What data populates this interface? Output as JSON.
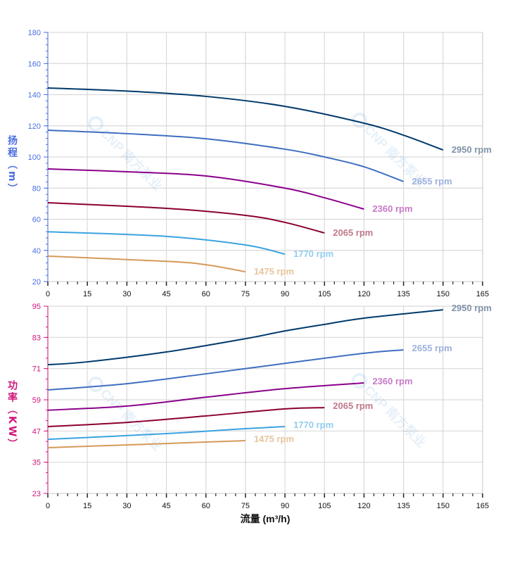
{
  "watermark": {
    "logo_text": "CNP 南方泵业"
  },
  "chart_data": [
    {
      "type": "line",
      "ylabel": "扬程（m）",
      "ylabel_chars": [
        "扬",
        "程",
        "(m)"
      ],
      "ylim": [
        20,
        180
      ],
      "yticks": [
        20,
        40,
        60,
        80,
        100,
        120,
        140,
        160,
        180
      ],
      "xlim": [
        0,
        165
      ],
      "xticks": [
        0,
        15,
        30,
        45,
        60,
        75,
        90,
        105,
        120,
        135,
        150,
        165
      ],
      "grid": true,
      "axis_color": "#4a6ee0",
      "series": [
        {
          "name": "2950 rpm",
          "color": "#003a6b",
          "label_color": "#7f93a8",
          "x": [
            0,
            30,
            60,
            90,
            120,
            135,
            150
          ],
          "y": [
            144.3,
            142.3,
            138.9,
            132.5,
            121.7,
            114,
            104.5
          ]
        },
        {
          "name": "2655 rpm",
          "color": "#3f6ec0",
          "label_color": "#9db0dd",
          "x": [
            0,
            30,
            60,
            90,
            105,
            120,
            135
          ],
          "y": [
            117.2,
            115,
            111.7,
            105,
            100,
            93.7,
            84.2
          ]
        },
        {
          "name": "2360 rpm",
          "color": "#8b008b",
          "label_color": "#c77ac7",
          "x": [
            0,
            30,
            60,
            90,
            105,
            120
          ],
          "y": [
            92.3,
            90.5,
            87.8,
            80,
            73.8,
            66.5
          ]
        },
        {
          "name": "2065 rpm",
          "color": "#8b0030",
          "label_color": "#c0788a",
          "x": [
            0,
            45,
            75,
            90,
            105
          ],
          "y": [
            70.6,
            67,
            62.5,
            58,
            51.2
          ]
        },
        {
          "name": "1770 rpm",
          "color": "#3aa3e0",
          "label_color": "#92cdef",
          "x": [
            0,
            45,
            75,
            90
          ],
          "y": [
            52,
            49,
            43.5,
            37.6
          ]
        },
        {
          "name": "1475 rpm",
          "color": "#d59a5a",
          "label_color": "#e8c49d",
          "x": [
            0,
            45,
            60,
            75
          ],
          "y": [
            36.3,
            33,
            30.8,
            26.3
          ]
        }
      ]
    },
    {
      "type": "line",
      "xlabel": "流量 (m³/h)",
      "ylabel": "功率（KW）",
      "ylabel_chars": [
        "功",
        "率",
        "(KW)"
      ],
      "ylim": [
        23,
        95
      ],
      "yticks": [
        23,
        35,
        47,
        59,
        71,
        83,
        95
      ],
      "xlim": [
        0,
        165
      ],
      "xticks": [
        0,
        15,
        30,
        45,
        60,
        75,
        90,
        105,
        120,
        135,
        150,
        165
      ],
      "grid": true,
      "axis_color": "#d0157a",
      "series": [
        {
          "name": "2950 rpm",
          "color": "#003a6b",
          "label_color": "#7f93a8",
          "x": [
            0,
            15,
            45,
            75,
            90,
            105,
            120,
            150
          ],
          "y": [
            72.5,
            73.6,
            77.4,
            82.5,
            85.5,
            88,
            90.4,
            93.6
          ]
        },
        {
          "name": "2655 rpm",
          "color": "#3f6ec0",
          "label_color": "#9db0dd",
          "x": [
            0,
            30,
            60,
            90,
            120,
            135
          ],
          "y": [
            62.8,
            65.2,
            69,
            73,
            76.9,
            78.2
          ]
        },
        {
          "name": "2360 rpm",
          "color": "#8b008b",
          "label_color": "#c77ac7",
          "x": [
            0,
            30,
            60,
            90,
            120
          ],
          "y": [
            55,
            56.6,
            60,
            63.3,
            65.5
          ]
        },
        {
          "name": "2065 rpm",
          "color": "#8b0030",
          "label_color": "#c0788a",
          "x": [
            0,
            30,
            60,
            90,
            105
          ],
          "y": [
            48.7,
            50.3,
            52.8,
            55.5,
            56
          ]
        },
        {
          "name": "1770 rpm",
          "color": "#3aa3e0",
          "label_color": "#92cdef",
          "x": [
            0,
            45,
            75,
            90
          ],
          "y": [
            43.8,
            46,
            47.9,
            48.7
          ]
        },
        {
          "name": "1475 rpm",
          "color": "#d59a5a",
          "label_color": "#e8c49d",
          "x": [
            0,
            45,
            75
          ],
          "y": [
            40.6,
            42.2,
            43.3
          ]
        }
      ]
    }
  ]
}
